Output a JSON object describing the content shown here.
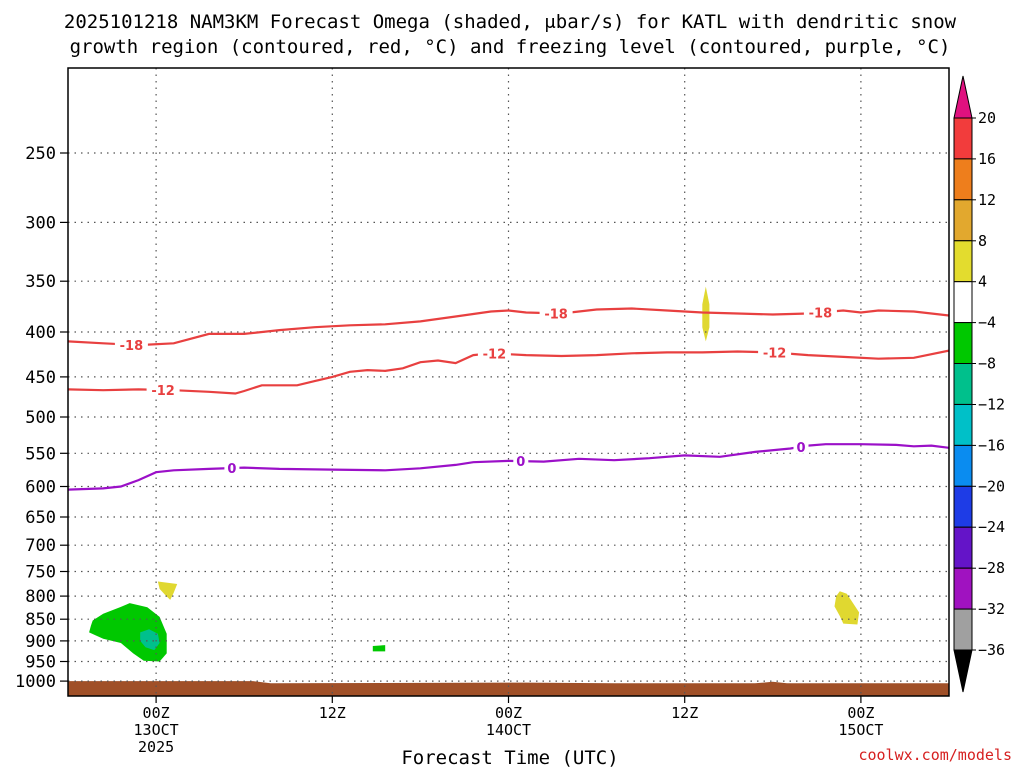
{
  "title_lines": [
    "2025101218 NAM3KM Forecast Omega (shaded, μbar/s) for KATL with dendritic snow",
    "growth region (contoured, red, °C) and freezing level (contoured, purple, °C)"
  ],
  "credit": "coolwx.com/models",
  "chart_data": {
    "type": "contour",
    "xlabel": "Forecast Time (UTC)",
    "ylabel": "",
    "x_range_hours": [
      -5,
      45
    ],
    "y_range_mb": [
      1040,
      200
    ],
    "y_scale": "log",
    "grid": true,
    "x_ticks": [
      {
        "hour": 0,
        "lines": [
          "00Z",
          "13OCT",
          "2025"
        ]
      },
      {
        "hour": 10,
        "lines": [
          "12Z"
        ]
      },
      {
        "hour": 20,
        "lines": [
          "00Z",
          "14OCT"
        ]
      },
      {
        "hour": 30,
        "lines": [
          "12Z"
        ]
      },
      {
        "hour": 40,
        "lines": [
          "00Z",
          "15OCT"
        ]
      }
    ],
    "y_ticks": [
      250,
      300,
      350,
      400,
      450,
      500,
      550,
      600,
      650,
      700,
      750,
      800,
      850,
      900,
      950,
      1000
    ],
    "contours": [
      {
        "name": "freezing level",
        "level_label": "0",
        "color": "#9b10c8",
        "label_at_hours": [
          4.3,
          20.7,
          36.6
        ],
        "points": [
          [
            -5,
            605
          ],
          [
            -3,
            603
          ],
          [
            -2,
            600
          ],
          [
            -1,
            590
          ],
          [
            0,
            578
          ],
          [
            1,
            575
          ],
          [
            3,
            573
          ],
          [
            5,
            571
          ],
          [
            7,
            573
          ],
          [
            10,
            574
          ],
          [
            13,
            575
          ],
          [
            15,
            572
          ],
          [
            17,
            567
          ],
          [
            18,
            563
          ],
          [
            20,
            561
          ],
          [
            22,
            562
          ],
          [
            24,
            558
          ],
          [
            26,
            560
          ],
          [
            28,
            557
          ],
          [
            30,
            553
          ],
          [
            32,
            555
          ],
          [
            34,
            548
          ],
          [
            36,
            543
          ],
          [
            37,
            539
          ],
          [
            38,
            537
          ],
          [
            40,
            537
          ],
          [
            42,
            538
          ],
          [
            43,
            540
          ],
          [
            44,
            539
          ],
          [
            45,
            542
          ]
        ]
      },
      {
        "name": "-12 C isotherm",
        "level_label": "-12",
        "color": "#e84040",
        "label_at_hours": [
          0.4,
          19.2,
          35.1
        ],
        "points": [
          [
            -5,
            465
          ],
          [
            -3,
            466
          ],
          [
            -1,
            465
          ],
          [
            1,
            466
          ],
          [
            3,
            468
          ],
          [
            4.5,
            470
          ],
          [
            5,
            467
          ],
          [
            6,
            460
          ],
          [
            8,
            460
          ],
          [
            9,
            455
          ],
          [
            10,
            450
          ],
          [
            11,
            444
          ],
          [
            12,
            442
          ],
          [
            13,
            443
          ],
          [
            14,
            440
          ],
          [
            15,
            433
          ],
          [
            16,
            431
          ],
          [
            17,
            434
          ],
          [
            18,
            425
          ],
          [
            19,
            423
          ],
          [
            21,
            425
          ],
          [
            23,
            426
          ],
          [
            25,
            425
          ],
          [
            27,
            423
          ],
          [
            29,
            422
          ],
          [
            31,
            422
          ],
          [
            33,
            421
          ],
          [
            35,
            422
          ],
          [
            37,
            425
          ],
          [
            39,
            427
          ],
          [
            41,
            429
          ],
          [
            43,
            428
          ],
          [
            45,
            420
          ]
        ]
      },
      {
        "name": "-18 C isotherm",
        "level_label": "-18",
        "color": "#e84040",
        "label_at_hours": [
          -1.4,
          22.7,
          37.7
        ],
        "points": [
          [
            -5,
            410
          ],
          [
            -3,
            412
          ],
          [
            -1,
            414
          ],
          [
            1,
            412
          ],
          [
            3,
            402
          ],
          [
            5,
            402
          ],
          [
            7,
            398
          ],
          [
            9,
            395
          ],
          [
            11,
            393
          ],
          [
            13,
            392
          ],
          [
            15,
            389
          ],
          [
            17,
            384
          ],
          [
            19,
            379
          ],
          [
            20,
            378
          ],
          [
            21,
            380
          ],
          [
            23,
            381
          ],
          [
            25,
            377
          ],
          [
            27,
            376
          ],
          [
            29,
            378
          ],
          [
            31,
            380
          ],
          [
            33,
            381
          ],
          [
            35,
            382
          ],
          [
            37,
            381
          ],
          [
            39,
            378
          ],
          [
            40,
            380
          ],
          [
            41,
            378
          ],
          [
            43,
            379
          ],
          [
            45,
            383
          ]
        ]
      }
    ],
    "shaded_regions": [
      {
        "name": "upward omega -8 to -4",
        "bin": [
          -8,
          -4
        ],
        "color": "#00c800",
        "points": [
          [
            -3.6,
            853
          ],
          [
            -3.0,
            838
          ],
          [
            -2.0,
            823
          ],
          [
            -1.5,
            815
          ],
          [
            -0.5,
            824
          ],
          [
            0.2,
            845
          ],
          [
            0.6,
            883
          ],
          [
            0.6,
            930
          ],
          [
            0.2,
            950
          ],
          [
            -0.7,
            948
          ],
          [
            -1.3,
            930
          ],
          [
            -2.0,
            905
          ],
          [
            -3.0,
            895
          ],
          [
            -3.8,
            880
          ],
          [
            -3.7,
            865
          ]
        ]
      },
      {
        "name": "upward omega -12 to -8",
        "bin": [
          -12,
          -8
        ],
        "color": "#00c08c",
        "points": [
          [
            -0.9,
            880
          ],
          [
            -0.4,
            873
          ],
          [
            0.1,
            883
          ],
          [
            0.2,
            905
          ],
          [
            -0.1,
            922
          ],
          [
            -0.6,
            915
          ],
          [
            -0.9,
            900
          ]
        ]
      },
      {
        "name": "upward omega -8 to -4 (small)",
        "bin": [
          -8,
          -4
        ],
        "color": "#00c800",
        "points": [
          [
            12.3,
            912
          ],
          [
            13.0,
            910
          ],
          [
            13.0,
            925
          ],
          [
            12.3,
            925
          ]
        ]
      },
      {
        "name": "downward omega 4 to 8 (a)",
        "bin": [
          4,
          8
        ],
        "color": "#e0d830",
        "points": [
          [
            0.1,
            770
          ],
          [
            1.2,
            775
          ],
          [
            1.0,
            793
          ],
          [
            0.8,
            808
          ],
          [
            0.5,
            797
          ],
          [
            0.2,
            785
          ]
        ]
      },
      {
        "name": "downward omega 4 to 8 (b)",
        "bin": [
          4,
          8
        ],
        "color": "#e0d830",
        "points": [
          [
            31.2,
            355
          ],
          [
            31.4,
            372
          ],
          [
            31.4,
            395
          ],
          [
            31.2,
            410
          ],
          [
            31.0,
            395
          ],
          [
            31.0,
            372
          ]
        ]
      },
      {
        "name": "downward omega 4 to 8 (c)",
        "bin": [
          4,
          8
        ],
        "color": "#e0d830",
        "points": [
          [
            38.8,
            790
          ],
          [
            39.2,
            795
          ],
          [
            39.5,
            812
          ],
          [
            39.9,
            835
          ],
          [
            39.8,
            862
          ],
          [
            39.0,
            860
          ],
          [
            38.8,
            843
          ],
          [
            38.5,
            822
          ],
          [
            38.6,
            800
          ]
        ]
      }
    ],
    "ground": {
      "color": "#a05028",
      "points": [
        [
          -5,
          1000
        ],
        [
          5.5,
          1000
        ],
        [
          6.5,
          1006
        ],
        [
          21,
          1004
        ],
        [
          26,
          1006
        ],
        [
          34,
          1006
        ],
        [
          35,
          1002
        ],
        [
          35.8,
          1006
        ],
        [
          45,
          1006
        ]
      ]
    },
    "colorbar": {
      "label_ticks": [
        "20",
        "16",
        "12",
        "8",
        "4",
        "−4",
        "−8",
        "−12",
        "−16",
        "−20",
        "−24",
        "−28",
        "−32",
        "−36"
      ],
      "top_arrow_color": "#e0117f",
      "bottom_arrow_color": "#000000",
      "bins": [
        {
          "from": 20,
          "to": 16,
          "color": "#f23c3c"
        },
        {
          "from": 16,
          "to": 12,
          "color": "#ee7e1c"
        },
        {
          "from": 12,
          "to": 8,
          "color": "#e2a82e"
        },
        {
          "from": 8,
          "to": 4,
          "color": "#e3dc2e"
        },
        {
          "from": 4,
          "to": -4,
          "color": "#ffffff"
        },
        {
          "from": -4,
          "to": -8,
          "color": "#00c800"
        },
        {
          "from": -8,
          "to": -12,
          "color": "#00c08c"
        },
        {
          "from": -12,
          "to": -16,
          "color": "#00c0c8"
        },
        {
          "from": -16,
          "to": -20,
          "color": "#0a8cf0"
        },
        {
          "from": -20,
          "to": -24,
          "color": "#1e3ce6"
        },
        {
          "from": -24,
          "to": -28,
          "color": "#6414c8"
        },
        {
          "from": -28,
          "to": -32,
          "color": "#a012c0"
        },
        {
          "from": -32,
          "to": -36,
          "color": "#a0a0a0"
        }
      ]
    }
  }
}
